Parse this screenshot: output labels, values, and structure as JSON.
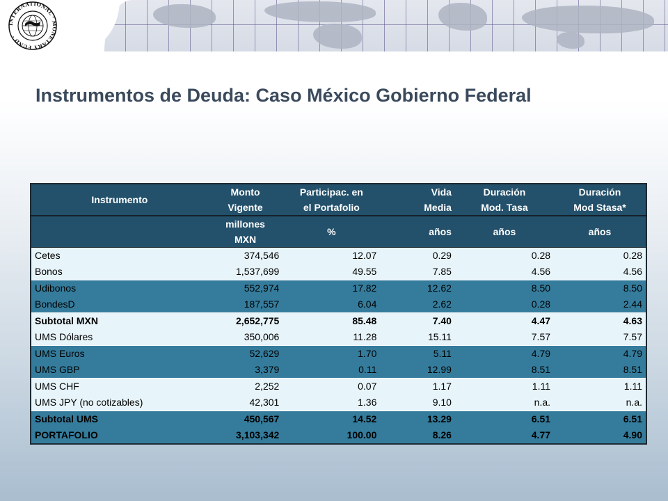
{
  "header": {
    "logo_text": "INTERNATIONAL MONETARY FUND"
  },
  "page": {
    "title": "Instrumentos de Deuda: Caso México Gobierno Federal"
  },
  "table": {
    "columns": [
      [
        "Instrumento"
      ],
      [
        "Monto",
        "Vigente"
      ],
      [
        "Participac. en",
        "el Portafolio"
      ],
      [
        "Vida",
        "Media"
      ],
      [
        "Duración",
        "Mod. Tasa"
      ],
      [
        "Duración",
        "Mod Stasa*"
      ]
    ],
    "units": [
      [
        ""
      ],
      [
        "millones",
        "MXN"
      ],
      [
        "%"
      ],
      [
        "años"
      ],
      [
        "años"
      ],
      [
        "años"
      ]
    ],
    "rows": [
      {
        "style": "light",
        "cells": [
          "Cetes",
          "374,546",
          "12.07",
          "0.29",
          "0.28",
          "0.28"
        ]
      },
      {
        "style": "light",
        "cells": [
          "Bonos",
          "1,537,699",
          "49.55",
          "7.85",
          "4.56",
          "4.56"
        ]
      },
      {
        "style": "dark",
        "cells": [
          "Udibonos",
          "552,974",
          "17.82",
          "12.62",
          "8.50",
          "8.50"
        ]
      },
      {
        "style": "dark",
        "cells": [
          "BondesD",
          "187,557",
          "6.04",
          "2.62",
          "0.28",
          "2.44"
        ]
      },
      {
        "style": "light bold",
        "cells": [
          "Subtotal MXN",
          "2,652,775",
          "85.48",
          "7.40",
          "4.47",
          "4.63"
        ]
      },
      {
        "style": "light",
        "cells": [
          "UMS Dólares",
          "350,006",
          "11.28",
          "15.11",
          "7.57",
          "7.57"
        ]
      },
      {
        "style": "dark",
        "cells": [
          "UMS Euros",
          "52,629",
          "1.70",
          "5.11",
          "4.79",
          "4.79"
        ]
      },
      {
        "style": "dark",
        "cells": [
          "UMS GBP",
          "3,379",
          "0.11",
          "12.99",
          "8.51",
          "8.51"
        ]
      },
      {
        "style": "light",
        "cells": [
          "UMS CHF",
          "2,252",
          "0.07",
          "1.17",
          "1.11",
          "1.11"
        ]
      },
      {
        "style": "light",
        "cells": [
          "UMS JPY (no cotizables)",
          "42,301",
          "1.36",
          "9.10",
          "n.a.",
          "n.a."
        ]
      },
      {
        "style": "dark bold",
        "cells": [
          "Subtotal UMS",
          "450,567",
          "14.52",
          "13.29",
          "6.51",
          "6.51"
        ]
      },
      {
        "style": "dark bold",
        "cells": [
          "PORTAFOLIO",
          "3,103,342",
          "100.00",
          "8.26",
          "4.77",
          "4.90"
        ]
      }
    ]
  },
  "colors": {
    "header_bg": "#23506a",
    "row_light": "#e7f4f9",
    "row_dark": "#357c9c",
    "title": "#3a4a5c"
  }
}
